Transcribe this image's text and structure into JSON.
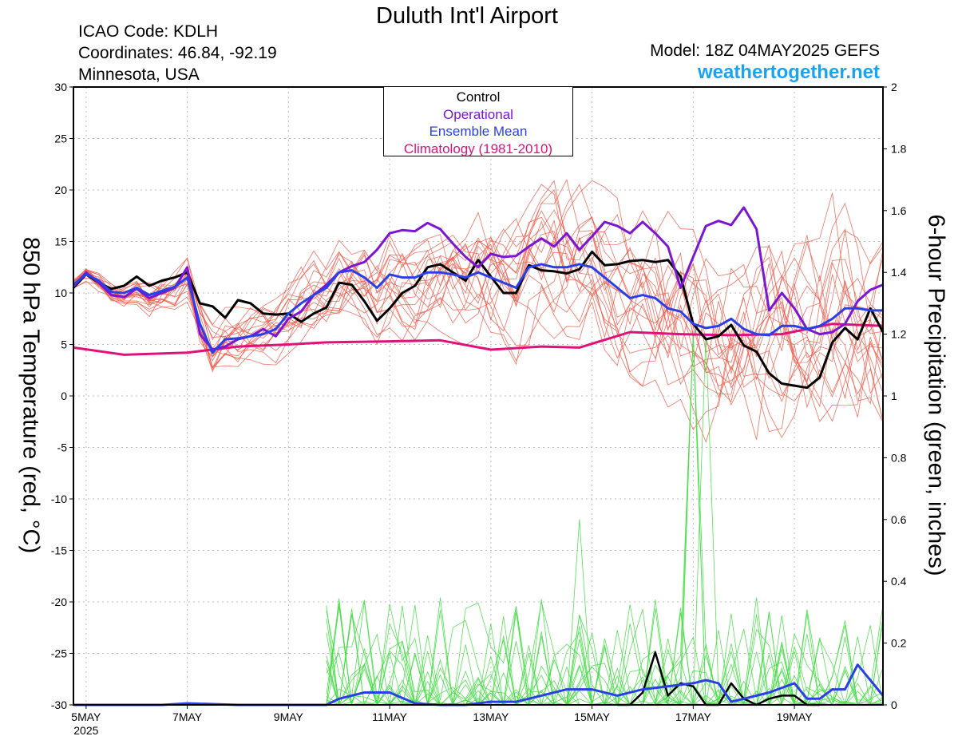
{
  "header": {
    "title": "Duluth Int'l Airport",
    "icao": "ICAO Code: KDLH",
    "coords": "Coordinates: 46.84, -92.19",
    "state": "Minnesota, USA",
    "model": "Model: 18Z 04MAY2025 GEFS",
    "site": "weathertogether.net"
  },
  "colors": {
    "control": "#000000",
    "operational": "#7a16d4",
    "ensemble_mean": "#2a3fe8",
    "climatology": "#e0127a",
    "members_temp": "#f05a4a",
    "members_precip": "#44dd44",
    "site": "#1aa3f0"
  },
  "chart_data": {
    "type": "line",
    "ylabel": "850 hPa Temperature (red, °C)",
    "y2label": "6-hour Precipitation (green, inches)",
    "ylim": [
      -30,
      30
    ],
    "y2lim": [
      0,
      2
    ],
    "yticks": [
      30,
      25,
      20,
      15,
      10,
      5,
      0,
      -5,
      -10,
      -15,
      -20,
      -25,
      -30
    ],
    "y2ticks": [
      "2",
      "1.8",
      "1.6",
      "1.4",
      "1.2",
      "1",
      "0.8",
      "0.6",
      "0.4",
      "0.2",
      "0"
    ],
    "xlim": [
      4.75,
      20.75
    ],
    "xticks": [
      {
        "x": 5,
        "label": "5MAY",
        "sub": "2025"
      },
      {
        "x": 7,
        "label": "7MAY"
      },
      {
        "x": 9,
        "label": "9MAY"
      },
      {
        "x": 11,
        "label": "11MAY"
      },
      {
        "x": 13,
        "label": "13MAY"
      },
      {
        "x": 15,
        "label": "15MAY"
      },
      {
        "x": 17,
        "label": "17MAY"
      },
      {
        "x": 19,
        "label": "19MAY"
      }
    ],
    "grid": true,
    "legend": {
      "position": "top-center",
      "entries": [
        "Control",
        "Operational",
        "Ensemble Mean",
        "Climatology (1981-2010)"
      ]
    },
    "series": [
      {
        "name": "Control",
        "axis": "left",
        "x": [
          4.75,
          5.0,
          5.25,
          5.5,
          5.75,
          6.0,
          6.25,
          6.5,
          6.75,
          7.0,
          7.25,
          7.5,
          7.75,
          8.0,
          8.25,
          8.5,
          8.75,
          9.0,
          9.25,
          9.5,
          9.75,
          10.0,
          10.25,
          10.5,
          10.75,
          11.0,
          11.25,
          11.5,
          11.75,
          12.0,
          12.25,
          12.5,
          12.75,
          13.0,
          13.25,
          13.5,
          13.75,
          14.0,
          14.25,
          14.5,
          14.75,
          15.0,
          15.25,
          15.5,
          15.75,
          16.0,
          16.25,
          16.5,
          16.75,
          17.0,
          17.25,
          17.5,
          17.75,
          18.0,
          18.25,
          18.5,
          18.75,
          19.0,
          19.25,
          19.5,
          19.75,
          20.0,
          20.25,
          20.5,
          20.75
        ],
        "values": [
          10.5,
          11.8,
          11.0,
          10.4,
          10.7,
          11.6,
          10.7,
          11.2,
          11.5,
          12.0,
          9.0,
          8.7,
          7.6,
          9.3,
          9.0,
          8.0,
          7.9,
          8.0,
          7.2,
          8.0,
          8.6,
          11.0,
          10.8,
          9.2,
          7.3,
          8.5,
          10.0,
          10.7,
          12.5,
          12.8,
          12.0,
          11.2,
          13.2,
          11.6,
          10.0,
          10.0,
          12.7,
          12.2,
          12.1,
          11.9,
          12.3,
          14.0,
          12.7,
          12.8,
          13.1,
          13.2,
          13.0,
          13.2,
          11.6,
          7.0,
          5.5,
          5.8,
          6.9,
          4.9,
          4.3,
          2.2,
          1.2,
          1.0,
          0.8,
          1.8,
          5.2,
          6.6,
          5.5,
          8.5,
          6.2
        ]
      },
      {
        "name": "Operational",
        "axis": "left",
        "x": [
          4.75,
          5.0,
          5.25,
          5.5,
          5.75,
          6.0,
          6.25,
          6.5,
          6.75,
          7.0,
          7.25,
          7.5,
          7.75,
          8.0,
          8.25,
          8.5,
          8.75,
          9.0,
          9.25,
          9.5,
          9.75,
          10.0,
          10.25,
          10.5,
          10.75,
          11.0,
          11.25,
          11.5,
          11.75,
          12.0,
          12.25,
          12.5,
          12.75,
          13.0,
          13.25,
          13.5,
          13.75,
          14.0,
          14.25,
          14.5,
          14.75,
          15.0,
          15.25,
          15.5,
          15.75,
          16.0,
          16.25,
          16.5,
          16.75,
          17.0,
          17.25,
          17.5,
          17.75,
          18.0,
          18.25,
          18.5,
          18.75,
          19.0,
          19.25,
          19.5,
          19.75,
          20.0,
          20.25,
          20.5,
          20.75
        ],
        "values": [
          10.6,
          12.0,
          11.0,
          9.8,
          9.6,
          10.4,
          9.5,
          10.0,
          10.5,
          12.5,
          6.0,
          4.5,
          4.8,
          5.5,
          5.8,
          6.5,
          5.8,
          7.5,
          8.2,
          9.8,
          10.8,
          12.0,
          12.6,
          13.0,
          14.2,
          15.8,
          16.1,
          16.0,
          16.8,
          16.2,
          14.8,
          13.5,
          12.5,
          13.8,
          13.5,
          13.6,
          14.5,
          15.3,
          14.5,
          15.8,
          14.2,
          15.5,
          16.9,
          16.5,
          15.8,
          16.9,
          15.8,
          14.5,
          10.5,
          13.5,
          16.5,
          17.0,
          16.6,
          18.3,
          16.2,
          8.3,
          10.0,
          8.5,
          6.5,
          6.0,
          6.2,
          7.0,
          9.2,
          10.3,
          10.8
        ]
      },
      {
        "name": "Ensemble Mean",
        "axis": "left",
        "x": [
          4.75,
          5.0,
          5.25,
          5.5,
          5.75,
          6.0,
          6.25,
          6.5,
          6.75,
          7.0,
          7.25,
          7.5,
          7.75,
          8.0,
          8.25,
          8.5,
          8.75,
          9.0,
          9.25,
          9.5,
          9.75,
          10.0,
          10.25,
          10.5,
          10.75,
          11.0,
          11.25,
          11.5,
          11.75,
          12.0,
          12.25,
          12.5,
          12.75,
          13.0,
          13.25,
          13.5,
          13.75,
          14.0,
          14.25,
          14.5,
          14.75,
          15.0,
          15.25,
          15.5,
          15.75,
          16.0,
          16.25,
          16.5,
          16.75,
          17.0,
          17.25,
          17.5,
          17.75,
          18.0,
          18.25,
          18.5,
          18.75,
          19.0,
          19.25,
          19.5,
          19.75,
          20.0,
          20.25,
          20.5,
          20.75
        ],
        "values": [
          10.8,
          11.8,
          11.2,
          10.1,
          10.0,
          10.5,
          9.8,
          10.2,
          10.6,
          11.5,
          7.0,
          4.2,
          5.5,
          5.6,
          5.8,
          6.0,
          6.5,
          8.0,
          9.0,
          9.8,
          10.5,
          12.0,
          12.2,
          11.5,
          10.5,
          11.8,
          11.5,
          11.5,
          12.0,
          12.0,
          11.8,
          11.5,
          12.0,
          11.5,
          11.0,
          10.5,
          12.5,
          12.8,
          12.5,
          12.5,
          12.8,
          12.5,
          11.5,
          10.5,
          9.5,
          9.8,
          9.5,
          8.5,
          8.2,
          7.0,
          6.6,
          6.8,
          7.5,
          6.5,
          6.0,
          5.9,
          6.8,
          6.8,
          6.5,
          6.8,
          7.5,
          8.5,
          8.5,
          8.3,
          8.3
        ]
      },
      {
        "name": "Climatology (1981-2010)",
        "axis": "left",
        "x": [
          4.75,
          5.75,
          7.0,
          8.0,
          9.0,
          9.75,
          11.0,
          12.0,
          13.0,
          14.0,
          14.75,
          15.75,
          16.75,
          17.75,
          18.75,
          19.75,
          20.75
        ],
        "values": [
          4.7,
          4.0,
          4.2,
          4.8,
          5.0,
          5.2,
          5.3,
          5.4,
          4.5,
          4.8,
          4.7,
          6.2,
          6.0,
          5.9,
          6.0,
          7.0,
          6.8
        ]
      },
      {
        "name": "Control Precipitation",
        "axis": "right",
        "x": [
          15.5,
          15.75,
          16.0,
          16.25,
          16.5,
          16.75,
          17.0,
          17.25,
          17.5,
          17.75,
          18.0,
          18.25,
          18.5,
          18.75,
          19.0,
          19.25,
          19.5
        ],
        "values": [
          0.0,
          0.0,
          0.04,
          0.17,
          0.03,
          0.07,
          0.06,
          0.0,
          0.0,
          0.07,
          0.02,
          0.0,
          0.02,
          0.03,
          0.03,
          0.0,
          0.0
        ]
      },
      {
        "name": "Ensemble Mean Precipitation",
        "axis": "right",
        "x": [
          4.75,
          5.5,
          6.5,
          7.0,
          8.0,
          9.0,
          9.75,
          10.0,
          10.5,
          11.0,
          11.5,
          12.0,
          12.5,
          13.0,
          13.5,
          14.0,
          14.5,
          15.0,
          15.5,
          16.0,
          16.5,
          17.0,
          17.25,
          17.5,
          17.75,
          18.0,
          18.5,
          19.0,
          19.25,
          19.5,
          19.75,
          20.0,
          20.25,
          20.5,
          20.75
        ],
        "values": [
          0,
          0,
          0,
          0.005,
          0,
          0,
          0,
          0.02,
          0.04,
          0.04,
          0.005,
          0,
          0,
          0.01,
          0.01,
          0.03,
          0.05,
          0.05,
          0.03,
          0.05,
          0.06,
          0.07,
          0.08,
          0.07,
          0.01,
          0.02,
          0.04,
          0.07,
          0.02,
          0.02,
          0.05,
          0.05,
          0.13,
          0.08,
          0.03
        ]
      }
    ]
  }
}
